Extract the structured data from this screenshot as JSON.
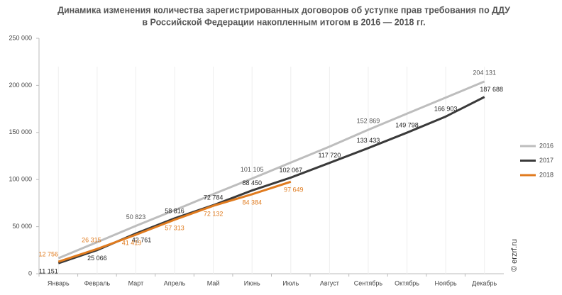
{
  "chart_data": {
    "type": "line",
    "title": [
      "Динамика изменения количества зарегистрированных договоров об уступке прав требования по ДДУ",
      "в Российской Федерации накопленным итогом в 2016 — 2018 гг."
    ],
    "categories": [
      "Январь",
      "Февраль",
      "Март",
      "Апрель",
      "Май",
      "Июнь",
      "Июль",
      "Август",
      "Сентябрь",
      "Октябрь",
      "Ноябрь",
      "Декабрь"
    ],
    "series": [
      {
        "name": "2016",
        "color": "#bdbdbd",
        "label_color": "#555555",
        "values": [
          16500,
          33500,
          50823,
          67500,
          84500,
          101105,
          118000,
          135000,
          152869,
          170000,
          187000,
          204131
        ],
        "value_labels": [
          null,
          null,
          "50 823",
          null,
          null,
          "101 105",
          null,
          null,
          "152 869",
          null,
          null,
          "204 131"
        ]
      },
      {
        "name": "2017",
        "color": "#3a3a3a",
        "label_color": "#222222",
        "values": [
          11151,
          25066,
          42761,
          58816,
          72784,
          88450,
          102067,
          117720,
          133433,
          149798,
          166903,
          187688
        ],
        "value_labels": [
          "11 151",
          "25 066",
          "42 761",
          "58 816",
          "72 784",
          "88 450",
          "102 067",
          "117 720",
          "133 433",
          "149 798",
          "166 903",
          "187 688"
        ]
      },
      {
        "name": "2018",
        "color": "#e07b1f",
        "label_color": "#e07b1f",
        "values": [
          12756,
          26315,
          41419,
          57313,
          72132,
          84384,
          97649,
          null,
          null,
          null,
          null,
          null
        ],
        "value_labels": [
          "12 756",
          "26 315",
          "41 419",
          "57 313",
          "72 132",
          "84 384",
          "97 649",
          null,
          null,
          null,
          null,
          null
        ]
      }
    ],
    "ylim": [
      0,
      250000
    ],
    "yticks": [
      0,
      {
        "value": 50000,
        "label": "50 000"
      },
      {
        "value": 100000,
        "label": "100 000"
      },
      {
        "value": 150000,
        "label": "150 000"
      },
      {
        "value": 200000,
        "label": "200 000"
      },
      {
        "value": 250000,
        "label": "250 000"
      }
    ],
    "grid": true,
    "legend": "right",
    "watermark": "© erzrf.ru"
  }
}
